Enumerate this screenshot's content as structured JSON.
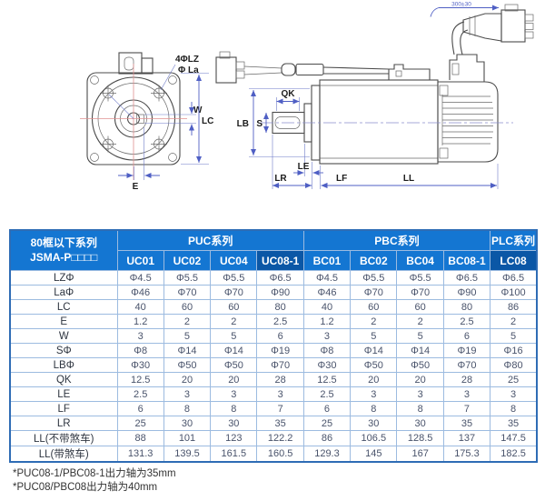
{
  "diagram": {
    "labels": {
      "lz": "4ΦLZ",
      "la": "Φ La",
      "w": "W",
      "lc": "LC",
      "e": "E",
      "qk": "QK",
      "lb": "LB",
      "s": "S",
      "le": "LE",
      "lr": "LR",
      "lf": "LF",
      "ll": "LL",
      "cable": "300±30"
    }
  },
  "table": {
    "corner_header": [
      "80框以下系列",
      "JSMA-P□□□□"
    ],
    "groups": [
      {
        "label": "PUC系列",
        "span": 4
      },
      {
        "label": "PBC系列",
        "span": 4
      },
      {
        "label": "PLC系列",
        "span": 1
      }
    ],
    "columns": [
      {
        "label": "UC01",
        "emphasis": false
      },
      {
        "label": "UC02",
        "emphasis": false
      },
      {
        "label": "UC04",
        "emphasis": false
      },
      {
        "label": "UC08-1",
        "emphasis": true
      },
      {
        "label": "BC01",
        "emphasis": false
      },
      {
        "label": "BC02",
        "emphasis": false
      },
      {
        "label": "BC04",
        "emphasis": false
      },
      {
        "label": "BC08-1",
        "emphasis": false
      },
      {
        "label": "LC08",
        "emphasis": true
      }
    ],
    "rows": [
      {
        "label": "LZΦ",
        "values": [
          "Φ4.5",
          "Φ5.5",
          "Φ5.5",
          "Φ6.5",
          "Φ4.5",
          "Φ5.5",
          "Φ5.5",
          "Φ6.5",
          "Φ6.5"
        ]
      },
      {
        "label": "LaΦ",
        "values": [
          "Φ46",
          "Φ70",
          "Φ70",
          "Φ90",
          "Φ46",
          "Φ70",
          "Φ70",
          "Φ90",
          "Φ100"
        ]
      },
      {
        "label": "LC",
        "values": [
          "40",
          "60",
          "60",
          "80",
          "40",
          "60",
          "60",
          "80",
          "86"
        ]
      },
      {
        "label": "E",
        "values": [
          "1.2",
          "2",
          "2",
          "2.5",
          "1.2",
          "2",
          "2",
          "2.5",
          "2"
        ]
      },
      {
        "label": "W",
        "values": [
          "3",
          "5",
          "5",
          "6",
          "3",
          "5",
          "5",
          "6",
          "5"
        ]
      },
      {
        "label": "SΦ",
        "values": [
          "Φ8",
          "Φ14",
          "Φ14",
          "Φ19",
          "Φ8",
          "Φ14",
          "Φ14",
          "Φ19",
          "Φ16"
        ]
      },
      {
        "label": "LBΦ",
        "values": [
          "Φ30",
          "Φ50",
          "Φ50",
          "Φ70",
          "Φ30",
          "Φ50",
          "Φ50",
          "Φ70",
          "Φ80"
        ]
      },
      {
        "label": "QK",
        "values": [
          "12.5",
          "20",
          "20",
          "28",
          "12.5",
          "20",
          "20",
          "28",
          "25"
        ]
      },
      {
        "label": "LE",
        "values": [
          "2.5",
          "3",
          "3",
          "3",
          "2.5",
          "3",
          "3",
          "3",
          "3"
        ]
      },
      {
        "label": "LF",
        "values": [
          "6",
          "8",
          "8",
          "7",
          "6",
          "8",
          "8",
          "7",
          "8"
        ]
      },
      {
        "label": "LR",
        "values": [
          "25",
          "30",
          "30",
          "35",
          "25",
          "30",
          "30",
          "35",
          "35"
        ]
      },
      {
        "label": "LL(不带煞车)",
        "values": [
          "88",
          "101",
          "123",
          "122.2",
          "86",
          "106.5",
          "128.5",
          "137",
          "147.5"
        ]
      },
      {
        "label": "LL(带煞车)",
        "values": [
          "131.3",
          "139.5",
          "161.5",
          "160.5",
          "129.3",
          "145",
          "167",
          "175.3",
          "182.5"
        ]
      }
    ]
  },
  "footnotes": [
    "*PUC08-1/PBC08-1出力轴为35mm",
    "*PUC08/PBC08出力轴为40mm"
  ],
  "colors": {
    "header_blue": "#1476d2",
    "header_blue_dark": "#0b57a6",
    "grid_line": "#9cbbe0",
    "outer_border": "#2e6cb5",
    "dimension_blue": "#4f5fc4",
    "centerline_red": "#e09090"
  }
}
